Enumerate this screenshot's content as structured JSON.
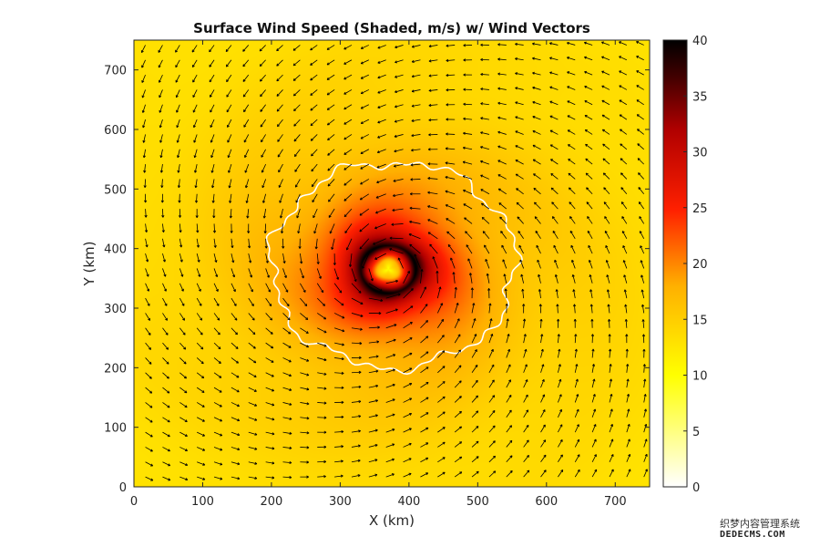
{
  "chart_data": {
    "type": "heatmap",
    "title": "Surface Wind Speed (Shaded, m/s) w/ Wind Vectors",
    "xlabel": "X (km)",
    "ylabel": "Y (km)",
    "xlim": [
      0,
      750
    ],
    "ylim": [
      0,
      750
    ],
    "x_ticks": [
      0,
      100,
      200,
      300,
      400,
      500,
      600,
      700
    ],
    "y_ticks": [
      0,
      100,
      200,
      300,
      400,
      500,
      600,
      700
    ],
    "colorbar": {
      "range": [
        0,
        40
      ],
      "ticks": [
        0,
        5,
        10,
        15,
        20,
        25,
        30,
        35,
        40
      ],
      "colormap": "hot (reversed)"
    },
    "field": {
      "center_xy": [
        370,
        365
      ],
      "eye_wind": 10,
      "max_wind": 40,
      "radius_of_max_wind_km": 40,
      "background_wind": 11
    },
    "contour": {
      "level_description": "white outline enclosing strong-wind region",
      "approx_extent_x": [
        200,
        555
      ],
      "approx_extent_y": [
        200,
        545
      ],
      "color": "#ffffff"
    },
    "vectors": {
      "spacing_km": 25,
      "rotation": "counterclockwise",
      "color": "#000000"
    },
    "grid": false,
    "legend": "none (colorbar at right)"
  },
  "watermark": {
    "line1": "织梦内容管理系统",
    "line2": "DEDECMS.COM"
  },
  "colors": {
    "background": "#ffffff",
    "axes": "#262626",
    "contour": "#ffffff",
    "vectors": "#000000"
  }
}
